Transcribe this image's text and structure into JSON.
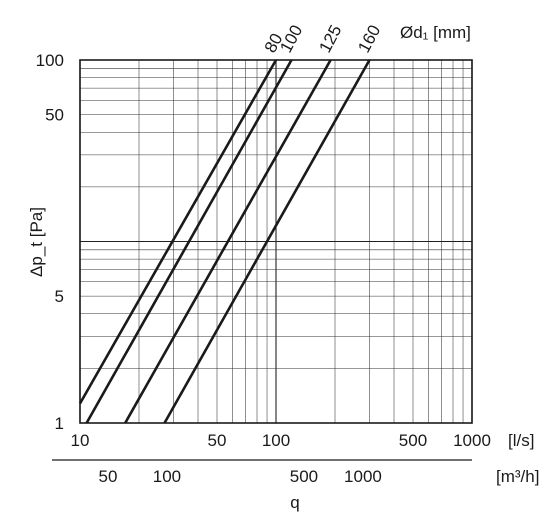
{
  "chart_data": {
    "type": "line",
    "x_scale": "log",
    "y_scale": "log",
    "xlim": [
      10,
      1000
    ],
    "ylim": [
      1,
      100
    ],
    "grid": true,
    "xlabel": "q",
    "ylabel": "Δp_t [Pa]",
    "x_unit": "[l/s]",
    "x2_unit": "[m³/h]",
    "legend_title": "Ød₁ [mm]",
    "x_ticks": [
      "10",
      "50",
      "100",
      "500",
      "1000"
    ],
    "x_tick_values": [
      10,
      50,
      100,
      500,
      1000
    ],
    "x2_ticks": [
      "50",
      "100",
      "500",
      "1000"
    ],
    "x2_tick_values": [
      50,
      100,
      500,
      1000
    ],
    "y_ticks": [
      "1",
      "5",
      "50",
      "100"
    ],
    "y_tick_values": [
      1,
      5,
      50,
      100
    ],
    "series": [
      {
        "name": "80",
        "x": [
          10,
          100
        ],
        "y": [
          1.28,
          100
        ]
      },
      {
        "name": "100",
        "x": [
          10.8,
          120
        ],
        "y": [
          1,
          100
        ]
      },
      {
        "name": "125",
        "x": [
          17,
          190
        ],
        "y": [
          1,
          100
        ]
      },
      {
        "name": "160",
        "x": [
          27,
          300
        ],
        "y": [
          1,
          100
        ]
      }
    ]
  }
}
